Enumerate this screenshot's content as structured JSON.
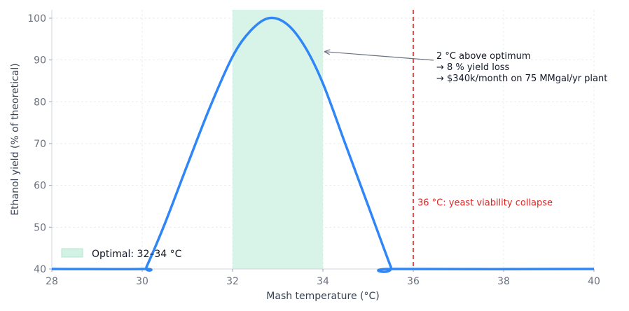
{
  "chart_data": {
    "type": "line",
    "xlabel": "Mash temperature (°C)",
    "ylabel": "Ethanol yield (% of theoretical)",
    "xlim": [
      28,
      40
    ],
    "ylim": [
      40,
      102
    ],
    "x_ticks": [
      28,
      30,
      32,
      34,
      36,
      38,
      40
    ],
    "y_ticks": [
      40,
      50,
      60,
      70,
      80,
      90,
      100
    ],
    "grid": true,
    "legend_position": "bottom-left",
    "series": [
      {
        "color": "#2f86f6",
        "points": [
          [
            28,
            40
          ],
          [
            30.05,
            40
          ],
          [
            30.1,
            40.6
          ],
          [
            30.5,
            50.8
          ],
          [
            31,
            64.9
          ],
          [
            31.5,
            78.7
          ],
          [
            32,
            90.8
          ],
          [
            32.4,
            97
          ],
          [
            32.8,
            100
          ],
          [
            33.2,
            98.6
          ],
          [
            33.6,
            93.2
          ],
          [
            34,
            84.4
          ],
          [
            34.5,
            69.8
          ],
          [
            35,
            55.2
          ],
          [
            35.5,
            40.6
          ],
          [
            35.55,
            40
          ],
          [
            40,
            40
          ]
        ]
      }
    ],
    "band": {
      "x0": 32,
      "x1": 34,
      "label": "Optimal: 32–34 °C",
      "color": "#d1f2e5"
    },
    "vline": {
      "x": 36,
      "label": "36 °C: yeast viability collapse",
      "color": "#dc2626"
    },
    "annotation": {
      "lines": [
        "2 °C above optimum",
        "→ 8 % yield loss",
        "→ $340k/month on 75 MMgal/yr plant"
      ],
      "point": {
        "x": 34,
        "y": 92
      }
    }
  }
}
